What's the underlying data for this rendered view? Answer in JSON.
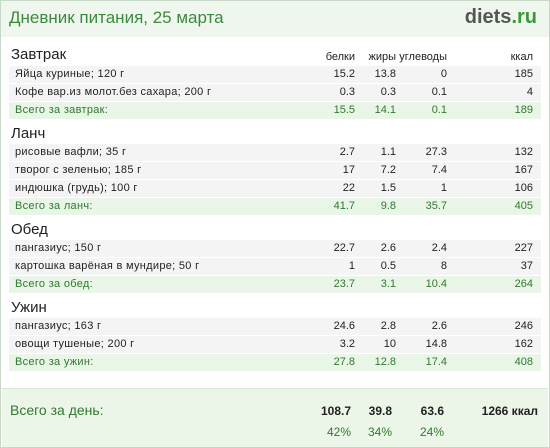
{
  "header": {
    "title": "Дневник питания, 25 марта",
    "logo_main": "diets",
    "logo_dot": ".",
    "logo_tld": "ru"
  },
  "columns": [
    "белки",
    "жиры",
    "углеводы",
    "ккал"
  ],
  "meals": [
    {
      "title": "Завтрак",
      "items": [
        {
          "name": "Яйца куриные; 120 г",
          "values": [
            "15.2",
            "13.8",
            "0",
            "185"
          ]
        },
        {
          "name": "Кофе вар.из молот.без сахара; 200 г",
          "values": [
            "0.3",
            "0.3",
            "0.1",
            "4"
          ]
        }
      ],
      "total": {
        "label": "Всего за завтрак:",
        "values": [
          "15.5",
          "14.1",
          "0.1",
          "189"
        ]
      }
    },
    {
      "title": "Ланч",
      "items": [
        {
          "name": "рисовые вафли; 35 г",
          "values": [
            "2.7",
            "1.1",
            "27.3",
            "132"
          ]
        },
        {
          "name": "творог с зеленью; 185 г",
          "values": [
            "17",
            "7.2",
            "7.4",
            "167"
          ]
        },
        {
          "name": "индюшка (грудь); 100 г",
          "values": [
            "22",
            "1.5",
            "1",
            "106"
          ]
        }
      ],
      "total": {
        "label": "Всего за ланч:",
        "values": [
          "41.7",
          "9.8",
          "35.7",
          "405"
        ]
      }
    },
    {
      "title": "Обед",
      "items": [
        {
          "name": "пангазиус; 150 г",
          "values": [
            "22.7",
            "2.6",
            "2.4",
            "227"
          ]
        },
        {
          "name": "картошка варёная в мундире; 50 г",
          "values": [
            "1",
            "0.5",
            "8",
            "37"
          ]
        }
      ],
      "total": {
        "label": "Всего за обед:",
        "values": [
          "23.7",
          "3.1",
          "10.4",
          "264"
        ]
      }
    },
    {
      "title": "Ужин",
      "items": [
        {
          "name": "пангазиус; 163 г",
          "values": [
            "24.6",
            "2.8",
            "2.6",
            "246"
          ]
        },
        {
          "name": "овощи тушеные; 200 г",
          "values": [
            "3.2",
            "10",
            "14.8",
            "162"
          ]
        }
      ],
      "total": {
        "label": "Всего за ужин:",
        "values": [
          "27.8",
          "12.8",
          "17.4",
          "408"
        ]
      }
    }
  ],
  "day": {
    "label": "Всего за день:",
    "values": [
      "108.7",
      "39.8",
      "63.6",
      "1266 ккал"
    ],
    "percents": [
      "42%",
      "34%",
      "24%"
    ]
  },
  "colors": {
    "accent": "#3b8a3b",
    "header_bg": "#eef6ee",
    "total_bg": "#e9f5e6"
  }
}
